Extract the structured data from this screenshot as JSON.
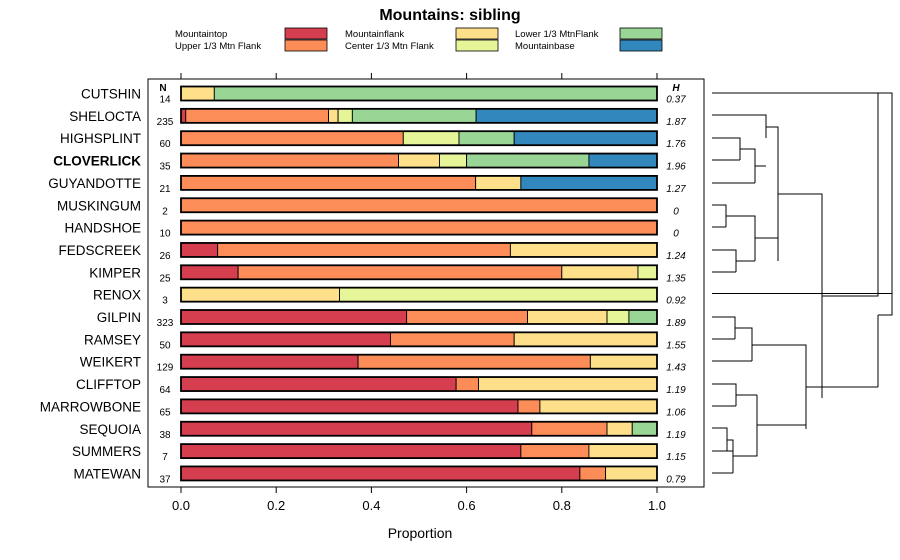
{
  "chart_data": {
    "type": "stacked-bar",
    "title": "Mountains: sibling",
    "xlabel": "Proportion",
    "ylabel": "",
    "xlim": [
      0,
      1
    ],
    "x_ticks": [
      "0.0",
      "0.2",
      "0.4",
      "0.6",
      "0.8",
      "1.0"
    ],
    "n_header": "N",
    "h_header": "H",
    "legend_position": "top",
    "legend": [
      {
        "name": "Mountaintop",
        "color": "#d53e4f"
      },
      {
        "name": "Upper 1/3 Mtn Flank",
        "color": "#fc8d59"
      },
      {
        "name": "Mountainflank",
        "color": "#fee08b"
      },
      {
        "name": "Center 1/3 Mtn Flank",
        "color": "#e6f598"
      },
      {
        "name": "Lower 1/3 MtnFlank",
        "color": "#99d594"
      },
      {
        "name": "Mountainbase",
        "color": "#3288bd"
      }
    ],
    "stack_order": [
      "Mountaintop",
      "Upper 1/3 Mtn Flank",
      "Mountainflank",
      "Center 1/3 Mtn Flank",
      "Lower 1/3 MtnFlank",
      "Mountainbase"
    ],
    "series": [
      {
        "name": "CUTSHIN",
        "n": "14",
        "h": "0.37",
        "bold": false,
        "values": [
          0,
          0,
          0.07,
          0,
          0.93,
          0
        ]
      },
      {
        "name": "SHELOCTA",
        "n": "235",
        "h": "1.87",
        "bold": false,
        "values": [
          0.01,
          0.3,
          0.02,
          0.03,
          0.26,
          0.38
        ]
      },
      {
        "name": "HIGHSPLINT",
        "n": "60",
        "h": "1.76",
        "bold": false,
        "values": [
          0,
          0.467,
          0,
          0.117,
          0.116,
          0.3
        ]
      },
      {
        "name": "CLOVERLICK",
        "n": "35",
        "h": "1.96",
        "bold": true,
        "values": [
          0,
          0.457,
          0.086,
          0.057,
          0.257,
          0.143
        ]
      },
      {
        "name": "GUYANDOTTE",
        "n": "21",
        "h": "1.27",
        "bold": false,
        "values": [
          0,
          0.619,
          0.095,
          0,
          0,
          0.286
        ]
      },
      {
        "name": "MUSKINGUM",
        "n": "2",
        "h": "0",
        "bold": false,
        "values": [
          0,
          1,
          0,
          0,
          0,
          0
        ]
      },
      {
        "name": "HANDSHOE",
        "n": "10",
        "h": "0",
        "bold": false,
        "values": [
          0,
          1,
          0,
          0,
          0,
          0
        ]
      },
      {
        "name": "FEDSCREEK",
        "n": "26",
        "h": "1.24",
        "bold": false,
        "values": [
          0.077,
          0.615,
          0.308,
          0,
          0,
          0
        ]
      },
      {
        "name": "KIMPER",
        "n": "25",
        "h": "1.35",
        "bold": false,
        "values": [
          0.12,
          0.68,
          0.16,
          0.04,
          0,
          0
        ]
      },
      {
        "name": "RENOX",
        "n": "3",
        "h": "0.92",
        "bold": false,
        "values": [
          0,
          0,
          0.333,
          0.667,
          0,
          0
        ]
      },
      {
        "name": "GILPIN",
        "n": "323",
        "h": "1.89",
        "bold": false,
        "values": [
          0.474,
          0.254,
          0.167,
          0.046,
          0.059,
          0
        ]
      },
      {
        "name": "RAMSEY",
        "n": "50",
        "h": "1.55",
        "bold": false,
        "values": [
          0.44,
          0.26,
          0.3,
          0,
          0,
          0
        ]
      },
      {
        "name": "WEIKERT",
        "n": "129",
        "h": "1.43",
        "bold": false,
        "values": [
          0.372,
          0.488,
          0.14,
          0,
          0,
          0
        ]
      },
      {
        "name": "CLIFFTOP",
        "n": "64",
        "h": "1.19",
        "bold": false,
        "values": [
          0.578,
          0.047,
          0.375,
          0,
          0,
          0
        ]
      },
      {
        "name": "MARROWBONE",
        "n": "65",
        "h": "1.06",
        "bold": false,
        "values": [
          0.708,
          0.046,
          0.246,
          0,
          0,
          0
        ]
      },
      {
        "name": "SEQUOIA",
        "n": "38",
        "h": "1.19",
        "bold": false,
        "values": [
          0.737,
          0.158,
          0.053,
          0,
          0.052,
          0
        ]
      },
      {
        "name": "SUMMERS",
        "n": "7",
        "h": "1.15",
        "bold": false,
        "values": [
          0.714,
          0.143,
          0.143,
          0,
          0,
          0
        ]
      },
      {
        "name": "MATEWAN",
        "n": "37",
        "h": "0.79",
        "bold": false,
        "values": [
          0.838,
          0.054,
          0.108,
          0,
          0,
          0
        ]
      }
    ],
    "dendrogram": "hierarchical clustering of soil series (right margin)"
  }
}
